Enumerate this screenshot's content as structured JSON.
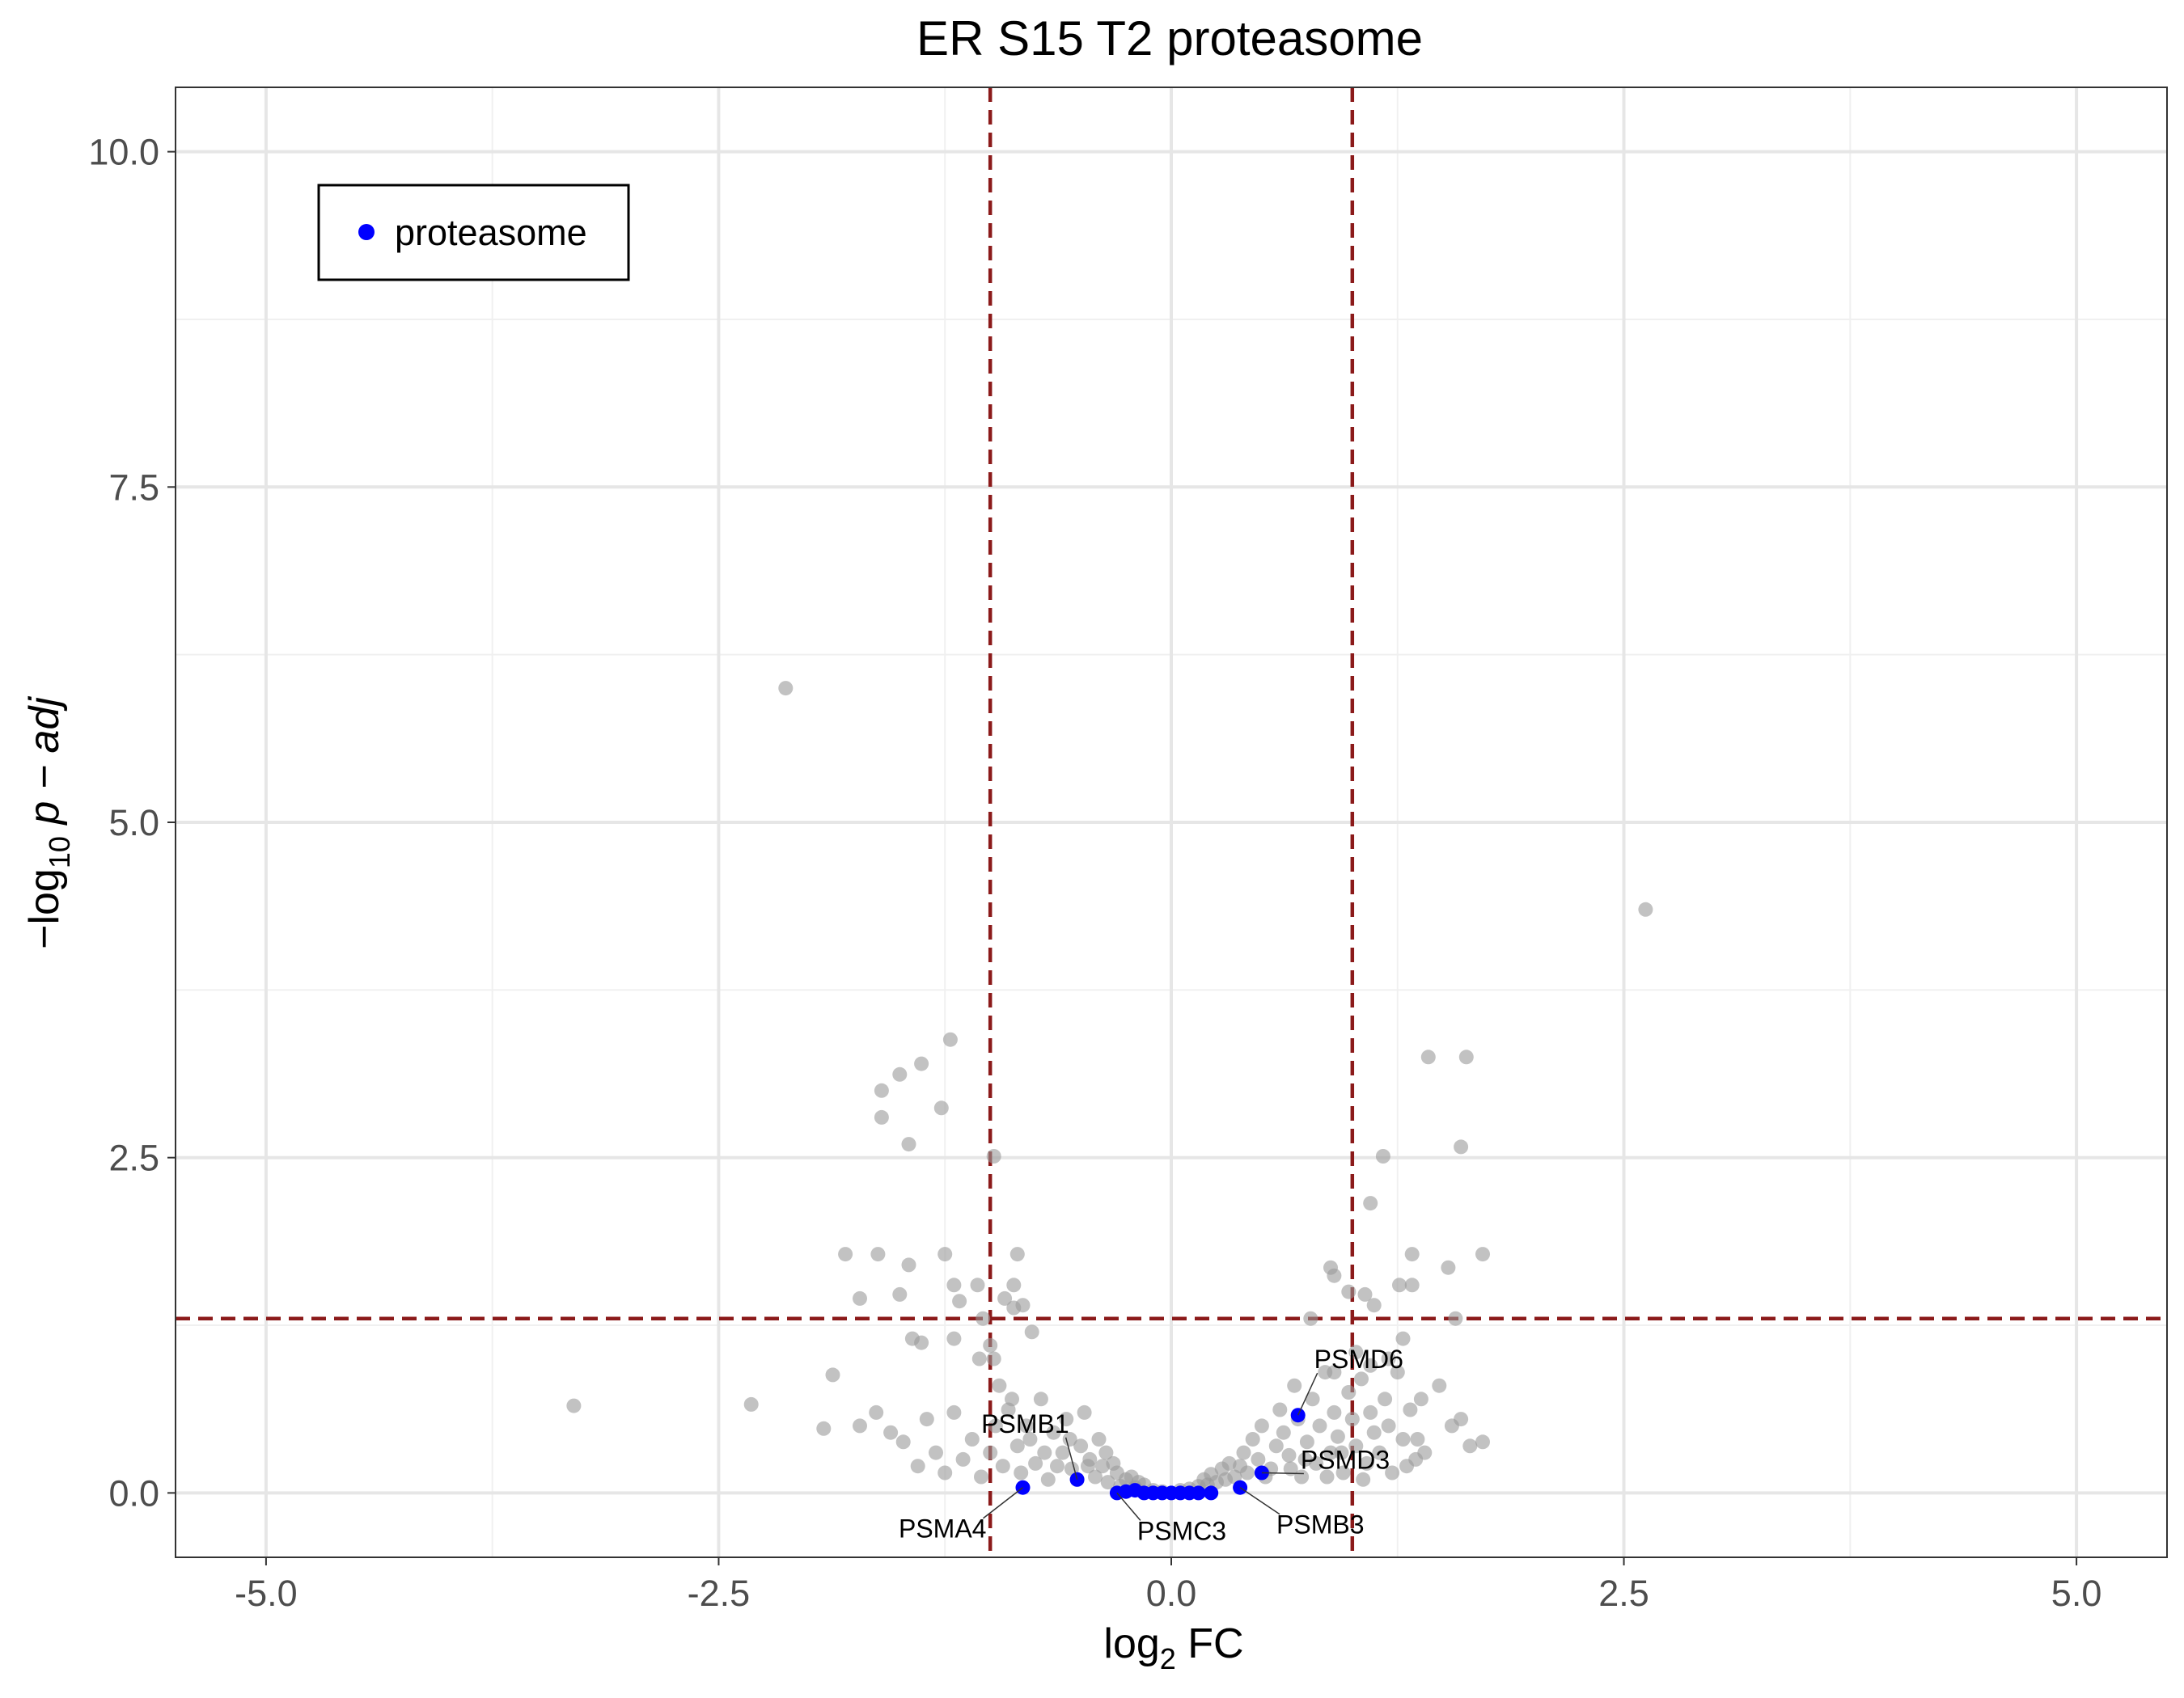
{
  "chart_data": {
    "type": "scatter",
    "title": "ER S15 T2 proteasome",
    "xlabel": {
      "prefix": "log",
      "sub": "2",
      "suffix": " FC"
    },
    "ylabel": {
      "prefix": "−log",
      "sub": "10",
      "italic": "p − adj"
    },
    "xlim": [
      -5.5,
      5.5
    ],
    "ylim": [
      -0.48,
      10.48
    ],
    "x_ticks": [
      -5.0,
      -2.5,
      0.0,
      2.5,
      5.0
    ],
    "x_tick_labels": [
      "-5.0",
      "-2.5",
      "0.0",
      "2.5",
      "5.0"
    ],
    "y_ticks": [
      0.0,
      2.5,
      5.0,
      7.5,
      10.0
    ],
    "y_tick_labels": [
      "0.0",
      "2.5",
      "5.0",
      "7.5",
      "10.0"
    ],
    "grid": true,
    "threshold_lines": {
      "x": [
        -1,
        1
      ],
      "y": [
        1.3
      ],
      "color": "#8b1a1a",
      "style": "dashed"
    },
    "legend": {
      "position": "top-left",
      "entries": [
        {
          "name": "proteasome",
          "color": "#0000ff"
        }
      ]
    },
    "series": [
      {
        "name": "other",
        "color": "#999999",
        "points": [
          [
            -2.13,
            6.0
          ],
          [
            2.62,
            4.35
          ],
          [
            -3.3,
            0.65
          ],
          [
            -2.32,
            0.66
          ],
          [
            -1.92,
            0.48
          ],
          [
            -1.87,
            0.88
          ],
          [
            -1.8,
            1.78
          ],
          [
            -1.62,
            1.78
          ],
          [
            -1.22,
            3.38
          ],
          [
            -1.38,
            3.2
          ],
          [
            -1.5,
            3.12
          ],
          [
            -1.6,
            3.0
          ],
          [
            -1.6,
            2.8
          ],
          [
            -1.27,
            2.87
          ],
          [
            -1.45,
            2.6
          ],
          [
            -0.98,
            2.51
          ],
          [
            -1.45,
            1.7
          ],
          [
            -1.25,
            1.78
          ],
          [
            -1.2,
            1.55
          ],
          [
            -1.07,
            1.55
          ],
          [
            -0.87,
            1.55
          ],
          [
            -0.92,
            1.45
          ],
          [
            -0.87,
            1.38
          ],
          [
            -0.82,
            1.4
          ],
          [
            -0.77,
            1.2
          ],
          [
            -1.5,
            1.48
          ],
          [
            -1.17,
            1.43
          ],
          [
            -1.72,
            1.45
          ],
          [
            -1.04,
            1.3
          ],
          [
            -1.43,
            1.15
          ],
          [
            -1.38,
            1.12
          ],
          [
            -1.2,
            1.15
          ],
          [
            -1.06,
            1.0
          ],
          [
            -0.98,
            1.0
          ],
          [
            -1.0,
            1.1
          ],
          [
            -0.85,
            1.78
          ],
          [
            1.42,
            3.25
          ],
          [
            1.63,
            3.25
          ],
          [
            1.6,
            2.58
          ],
          [
            1.17,
            2.51
          ],
          [
            1.1,
            2.16
          ],
          [
            1.33,
            1.78
          ],
          [
            1.72,
            1.78
          ],
          [
            1.53,
            1.68
          ],
          [
            0.88,
            1.68
          ],
          [
            0.9,
            1.62
          ],
          [
            0.98,
            1.5
          ],
          [
            1.07,
            1.48
          ],
          [
            1.26,
            1.55
          ],
          [
            1.33,
            1.55
          ],
          [
            1.12,
            1.4
          ],
          [
            1.57,
            1.3
          ],
          [
            0.77,
            1.3
          ],
          [
            1.28,
            1.15
          ],
          [
            1.02,
            1.05
          ],
          [
            1.1,
            0.95
          ],
          [
            0.9,
            0.9
          ],
          [
            1.2,
            1.0
          ],
          [
            1.38,
            0.7
          ],
          [
            1.48,
            0.8
          ],
          [
            1.6,
            0.55
          ],
          [
            1.55,
            0.5
          ],
          [
            1.72,
            0.38
          ],
          [
            1.65,
            0.35
          ],
          [
            1.4,
            0.3
          ],
          [
            1.36,
            0.4
          ],
          [
            1.3,
            0.2
          ],
          [
            -1.72,
            0.5
          ],
          [
            -1.63,
            0.6
          ],
          [
            -1.55,
            0.45
          ],
          [
            -1.48,
            0.38
          ],
          [
            -1.4,
            0.2
          ],
          [
            -1.35,
            0.55
          ],
          [
            -1.3,
            0.3
          ],
          [
            -1.25,
            0.15
          ],
          [
            -1.2,
            0.6
          ],
          [
            -1.15,
            0.25
          ],
          [
            -1.1,
            0.4
          ],
          [
            -1.05,
            0.12
          ],
          [
            -0.95,
            0.8
          ],
          [
            -0.9,
            0.62
          ],
          [
            -0.85,
            0.35
          ],
          [
            -0.8,
            0.5
          ],
          [
            -0.75,
            0.22
          ],
          [
            -0.72,
            0.7
          ],
          [
            -0.68,
            0.1
          ],
          [
            -0.65,
            0.45
          ],
          [
            -0.6,
            0.3
          ],
          [
            -0.58,
            0.55
          ],
          [
            -0.55,
            0.18
          ],
          [
            -0.5,
            0.35
          ],
          [
            -0.48,
            0.6
          ],
          [
            -0.45,
            0.25
          ],
          [
            -0.42,
            0.12
          ],
          [
            -0.4,
            0.4
          ],
          [
            -0.38,
            0.2
          ],
          [
            -0.35,
            0.08
          ],
          [
            -0.3,
            0.15
          ],
          [
            -0.28,
            0.05
          ],
          [
            -0.25,
            0.1
          ],
          [
            -0.2,
            0.04
          ],
          [
            -0.15,
            0.06
          ],
          [
            -0.1,
            0.02
          ],
          [
            -0.05,
            0.01
          ],
          [
            0.05,
            0.02
          ],
          [
            0.1,
            0.03
          ],
          [
            0.15,
            0.05
          ],
          [
            0.2,
            0.06
          ],
          [
            0.25,
            0.08
          ],
          [
            0.3,
            0.1
          ],
          [
            0.35,
            0.12
          ],
          [
            0.38,
            0.2
          ],
          [
            0.4,
            0.3
          ],
          [
            0.42,
            0.15
          ],
          [
            0.45,
            0.4
          ],
          [
            0.48,
            0.25
          ],
          [
            0.5,
            0.5
          ],
          [
            0.55,
            0.18
          ],
          [
            0.58,
            0.35
          ],
          [
            0.6,
            0.62
          ],
          [
            0.62,
            0.45
          ],
          [
            0.65,
            0.28
          ],
          [
            0.68,
            0.8
          ],
          [
            0.7,
            0.55
          ],
          [
            0.72,
            0.12
          ],
          [
            0.75,
            0.38
          ],
          [
            0.78,
            0.7
          ],
          [
            0.8,
            0.22
          ],
          [
            0.82,
            0.5
          ],
          [
            0.85,
            0.9
          ],
          [
            0.88,
            0.3
          ],
          [
            0.9,
            0.6
          ],
          [
            0.92,
            0.42
          ],
          [
            0.95,
            0.15
          ],
          [
            0.98,
            0.75
          ],
          [
            1.0,
            0.55
          ],
          [
            1.02,
            0.35
          ],
          [
            1.05,
            0.85
          ],
          [
            1.08,
            0.22
          ],
          [
            1.1,
            0.6
          ],
          [
            1.12,
            0.45
          ],
          [
            1.15,
            0.3
          ],
          [
            1.18,
            0.7
          ],
          [
            1.2,
            0.5
          ],
          [
            1.22,
            0.15
          ],
          [
            1.25,
            0.9
          ],
          [
            1.28,
            0.4
          ],
          [
            1.32,
            0.62
          ],
          [
            1.35,
            0.25
          ],
          [
            -1.0,
            0.3
          ],
          [
            -0.97,
            0.5
          ],
          [
            -0.93,
            0.2
          ],
          [
            -0.88,
            0.7
          ],
          [
            -0.83,
            0.15
          ],
          [
            -0.78,
            0.4
          ],
          [
            -0.7,
            0.3
          ],
          [
            -0.63,
            0.2
          ],
          [
            -0.56,
            0.4
          ],
          [
            -0.52,
            0.1
          ],
          [
            -0.46,
            0.2
          ],
          [
            -0.36,
            0.3
          ],
          [
            -0.32,
            0.22
          ],
          [
            -0.22,
            0.12
          ],
          [
            -0.18,
            0.08
          ],
          [
            0.18,
            0.1
          ],
          [
            0.22,
            0.14
          ],
          [
            0.28,
            0.18
          ],
          [
            0.32,
            0.22
          ],
          [
            0.52,
            0.12
          ],
          [
            0.66,
            0.18
          ],
          [
            0.74,
            0.25
          ],
          [
            0.86,
            0.12
          ],
          [
            0.94,
            0.3
          ],
          [
            1.06,
            0.1
          ]
        ]
      },
      {
        "name": "proteasome",
        "color": "#0000ff",
        "points": [
          [
            0.7,
            0.58
          ],
          [
            0.5,
            0.15
          ],
          [
            -0.52,
            0.1
          ],
          [
            0.38,
            0.04
          ],
          [
            -0.82,
            0.04
          ],
          [
            -0.3,
            0.0
          ],
          [
            -0.25,
            0.01
          ],
          [
            -0.2,
            0.02
          ],
          [
            -0.15,
            0.0
          ],
          [
            -0.1,
            0.0
          ],
          [
            -0.05,
            0.0
          ],
          [
            0.0,
            0.0
          ],
          [
            0.05,
            0.0
          ],
          [
            0.1,
            0.0
          ],
          [
            0.15,
            0.0
          ],
          [
            0.22,
            0.0
          ]
        ]
      }
    ],
    "annotations": [
      {
        "label": "PSMD6",
        "x": 0.7,
        "y": 0.58
      },
      {
        "label": "PSMB1",
        "x": -0.52,
        "y": 0.1
      },
      {
        "label": "PSMD3",
        "x": 0.5,
        "y": 0.15
      },
      {
        "label": "PSMA4",
        "x": -0.82,
        "y": 0.04
      },
      {
        "label": "PSMC3",
        "x": -0.3,
        "y": 0.0
      },
      {
        "label": "PSMB3",
        "x": 0.38,
        "y": 0.04
      }
    ]
  }
}
